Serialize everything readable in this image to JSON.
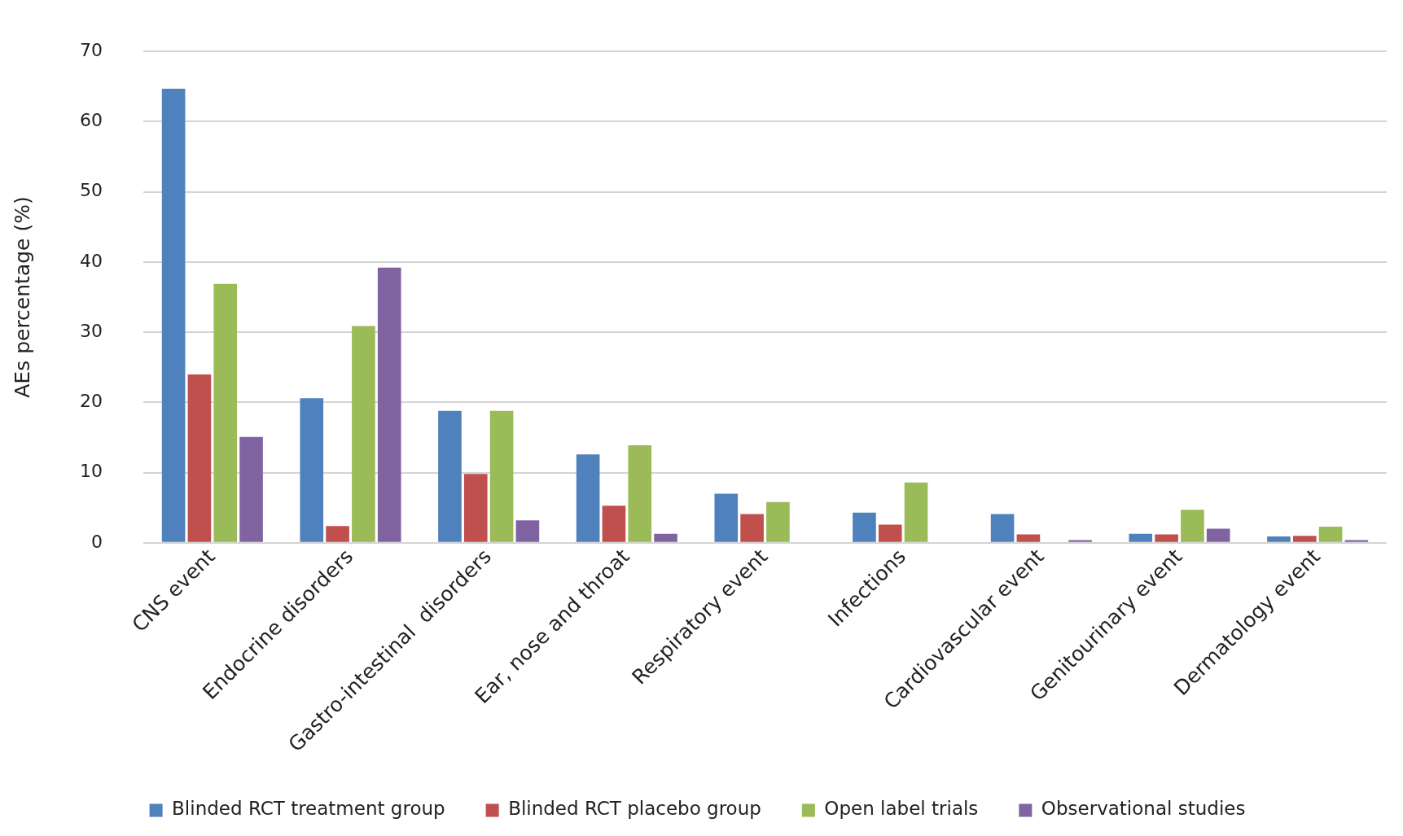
{
  "chart_data": {
    "type": "bar",
    "ylabel": "AEs percentage (%)",
    "categories": [
      "CNS event",
      "Endocrine disorders",
      "Gastro-intestinal  disorders",
      "Ear, nose and throat",
      "Respiratory event",
      "Infections",
      "Cardiovascular event",
      "Genitourinary event",
      "Dermatology event"
    ],
    "series": [
      {
        "name": "Blinded RCT treatment group",
        "color": "#4f81bd",
        "values": [
          64.7,
          20.6,
          18.8,
          12.6,
          7.0,
          4.3,
          4.1,
          1.3,
          0.9
        ]
      },
      {
        "name": "Blinded RCT placebo group",
        "color": "#c0504d",
        "values": [
          24.0,
          2.4,
          9.8,
          5.3,
          4.1,
          2.6,
          1.2,
          1.2,
          1.0
        ]
      },
      {
        "name": "Open label trials",
        "color": "#9bbb59",
        "values": [
          36.9,
          30.9,
          18.8,
          13.9,
          5.8,
          8.6,
          0,
          4.7,
          2.3
        ]
      },
      {
        "name": "Observational studies",
        "color": "#8064a2",
        "values": [
          15.1,
          39.2,
          3.2,
          1.3,
          0,
          0,
          0.4,
          2.0,
          0.4
        ]
      }
    ],
    "ylim": [
      0,
      70
    ],
    "yticks": [
      0,
      10,
      20,
      30,
      40,
      50,
      60,
      70
    ],
    "grid": "y",
    "legend": "bottom"
  }
}
